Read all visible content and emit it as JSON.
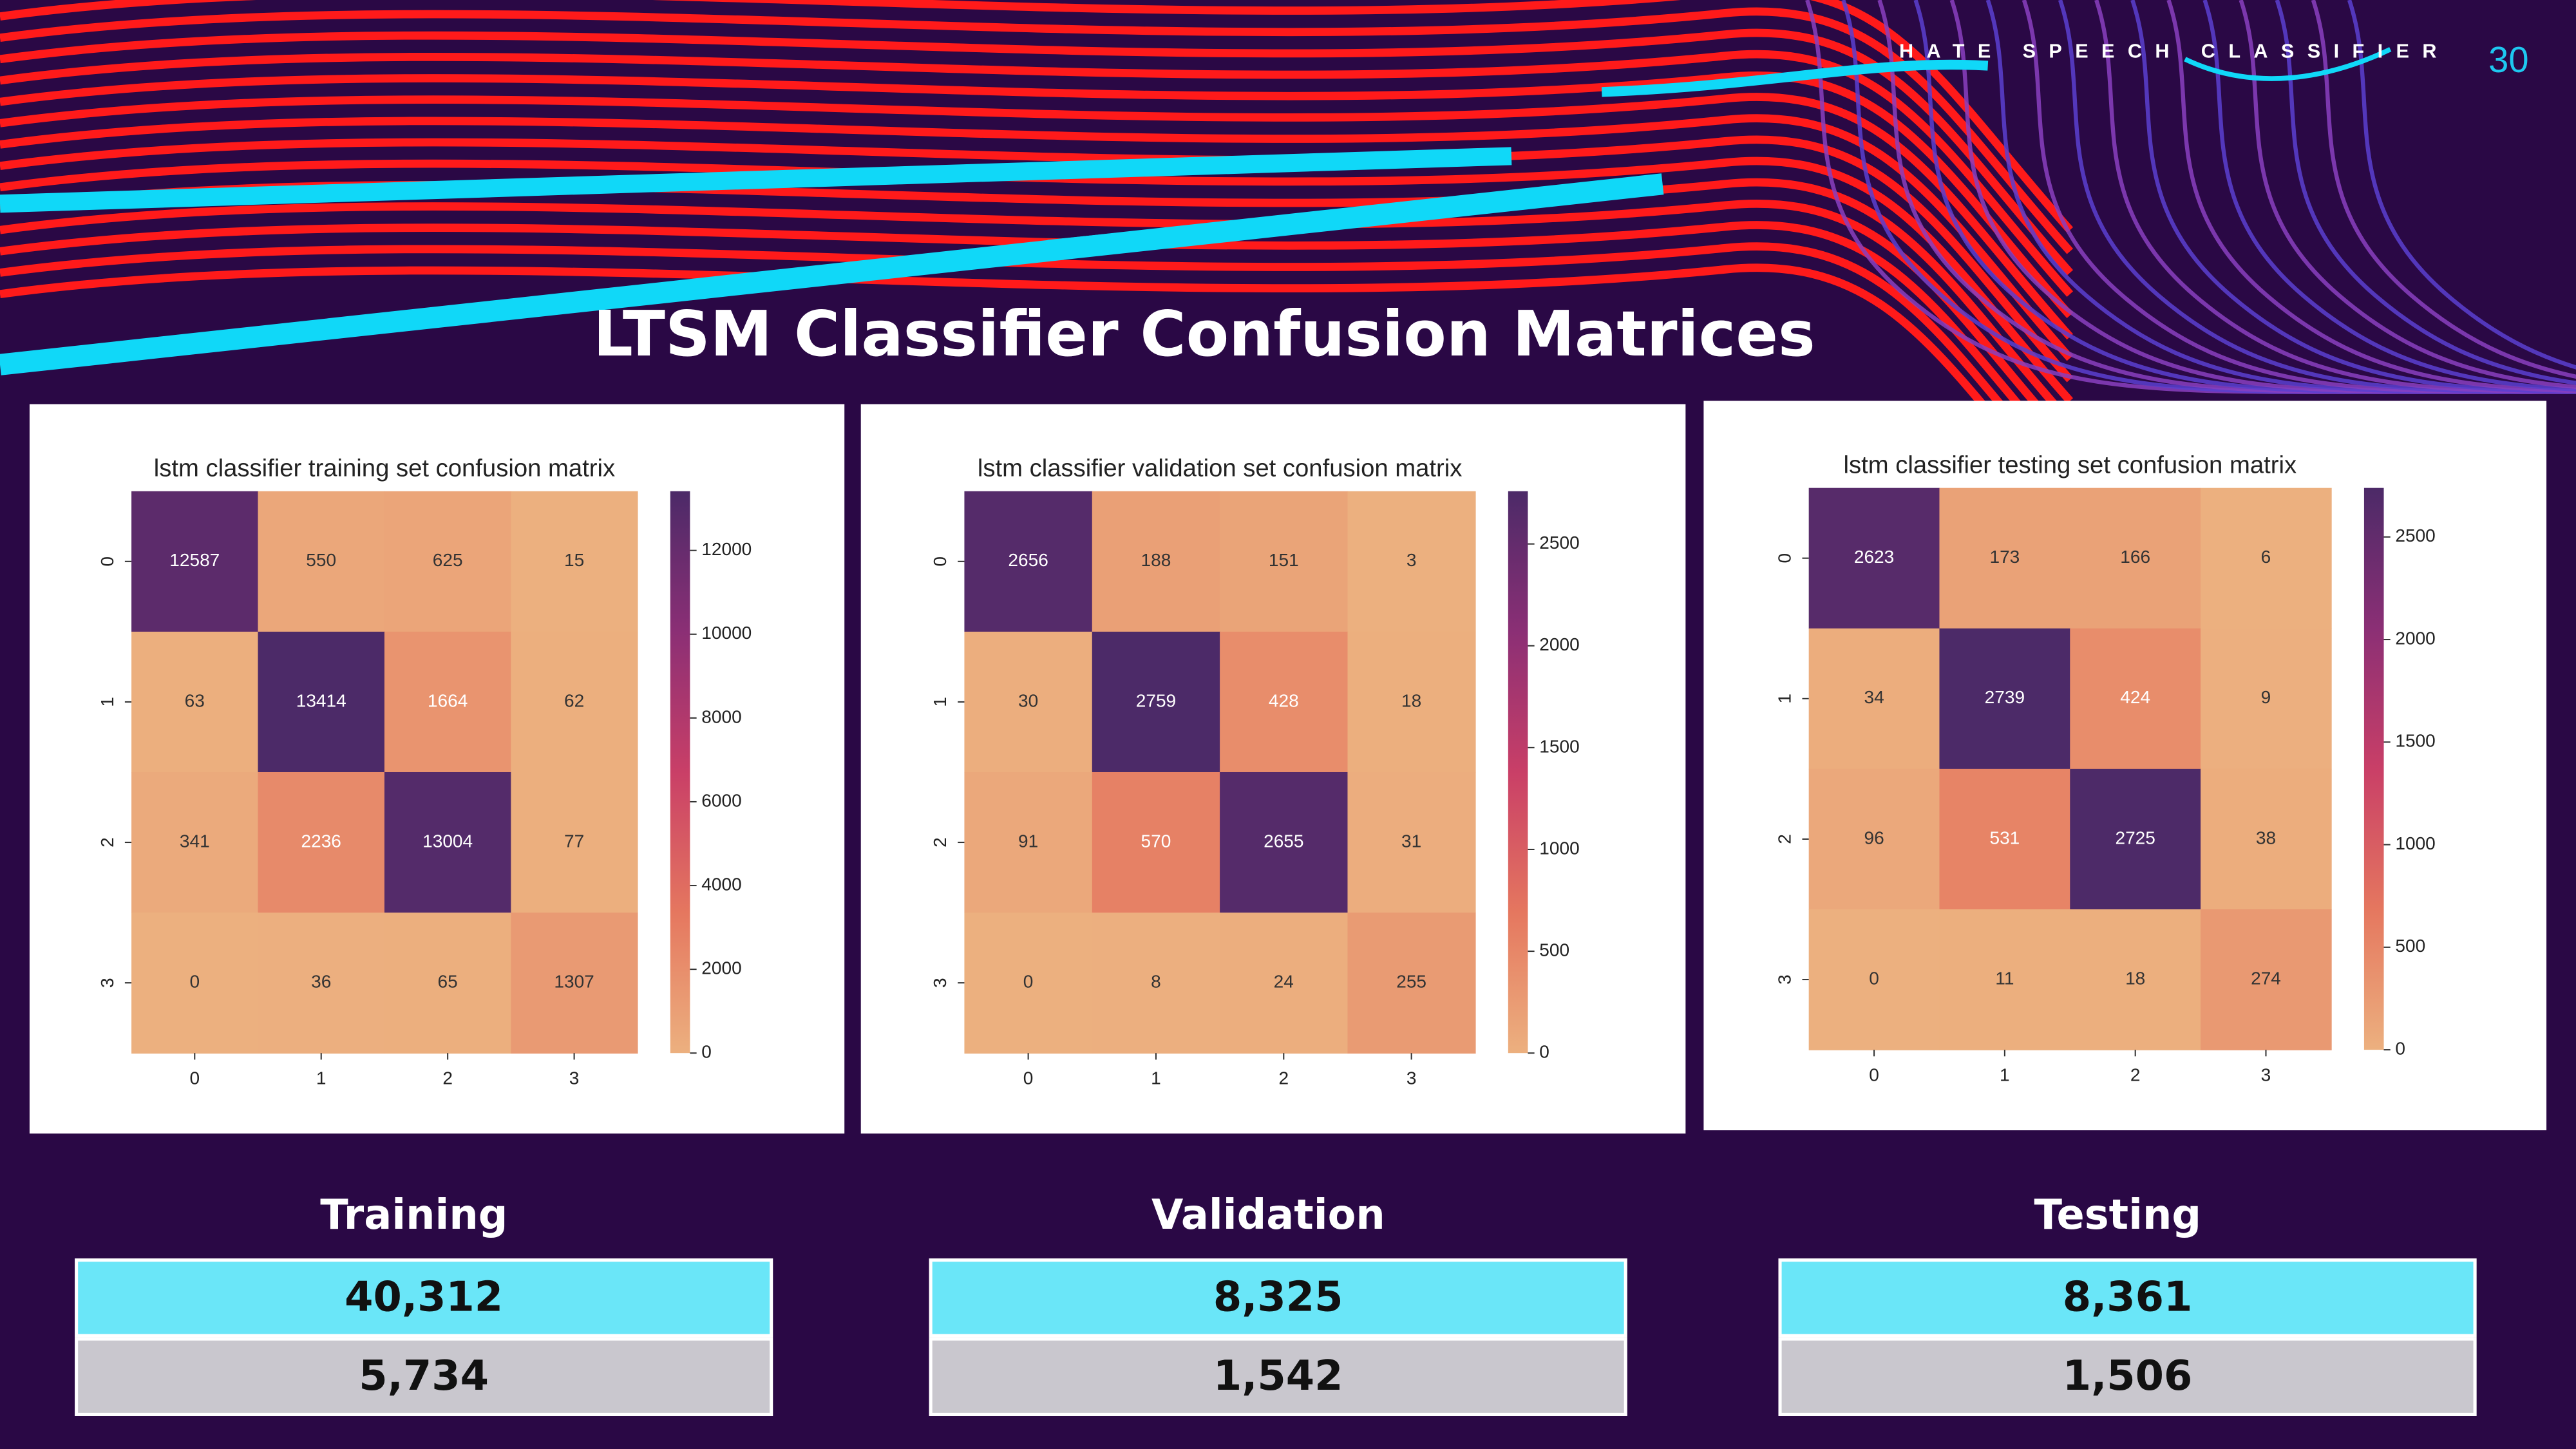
{
  "header": {
    "brand": "HATE SPEECH CLASSIFIER",
    "page_number": 30
  },
  "title": "LTSM Classifier Confusion Matrices",
  "chart_data": [
    {
      "type": "heatmap",
      "title": "lstm classifier training set confusion matrix",
      "x_categories": [
        "0",
        "1",
        "2",
        "3"
      ],
      "y_categories": [
        "0",
        "1",
        "2",
        "3"
      ],
      "values": [
        [
          12587,
          550,
          625,
          15
        ],
        [
          63,
          13414,
          1664,
          62
        ],
        [
          341,
          2236,
          13004,
          77
        ],
        [
          0,
          36,
          65,
          1307
        ]
      ],
      "zlim": [
        0,
        13414
      ],
      "zticks": [
        0,
        2000,
        4000,
        6000,
        8000,
        10000,
        12000
      ],
      "colormap": [
        "#ecb07f",
        "#e5775f",
        "#c93f67",
        "#8b2f75",
        "#4c2a68"
      ]
    },
    {
      "type": "heatmap",
      "title": "lstm classifier validation set confusion matrix",
      "x_categories": [
        "0",
        "1",
        "2",
        "3"
      ],
      "y_categories": [
        "0",
        "1",
        "2",
        "3"
      ],
      "values": [
        [
          2656,
          188,
          151,
          3
        ],
        [
          30,
          2759,
          428,
          18
        ],
        [
          91,
          570,
          2655,
          31
        ],
        [
          0,
          8,
          24,
          255
        ]
      ],
      "zlim": [
        0,
        2759
      ],
      "zticks": [
        0,
        500,
        1000,
        1500,
        2000,
        2500
      ],
      "colormap": [
        "#ecb07f",
        "#e5775f",
        "#c93f67",
        "#8b2f75",
        "#4c2a68"
      ]
    },
    {
      "type": "heatmap",
      "title": "lstm classifier testing set confusion matrix",
      "x_categories": [
        "0",
        "1",
        "2",
        "3"
      ],
      "y_categories": [
        "0",
        "1",
        "2",
        "3"
      ],
      "values": [
        [
          2623,
          173,
          166,
          6
        ],
        [
          34,
          2739,
          424,
          9
        ],
        [
          96,
          531,
          2725,
          38
        ],
        [
          0,
          11,
          18,
          274
        ]
      ],
      "zlim": [
        0,
        2739
      ],
      "zticks": [
        0,
        500,
        1000,
        1500,
        2000,
        2500
      ],
      "colormap": [
        "#ecb07f",
        "#e5775f",
        "#c93f67",
        "#8b2f75",
        "#4c2a68"
      ]
    }
  ],
  "summary": [
    {
      "label": "Training",
      "values": [
        "40,312",
        "5,734"
      ]
    },
    {
      "label": "Validation",
      "values": [
        "8,325",
        "1,542"
      ]
    },
    {
      "label": "Testing",
      "values": [
        "8,361",
        "1,506"
      ]
    }
  ]
}
